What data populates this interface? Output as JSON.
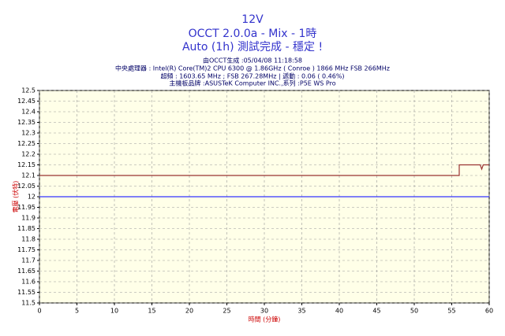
{
  "chart_data": {
    "type": "line",
    "title": "12V",
    "subtitle": "OCCT 2.0.0a - Mix - 1時",
    "status": "Auto (1h) 測試完成 - 穩定 !",
    "info": [
      "由OCCT生成 :05/04/08 11:18:58",
      "中央處理器 : Intel(R) Core(TM)2 CPU 6300 @ 1.86GHz ( Conroe ) 1866 MHz FSB 266MHz",
      "超頻 : 1603.65 MHz ; FSB 267.28MHz | 遞動 : 0.06 ( 0.46%)",
      "主機板品牌 :ASUSTeK Computer INC.,系列 :P5E WS Pro"
    ],
    "x_label": "時間 (分鐘)",
    "y_label": "電壓 (伏特)",
    "xlim": [
      0,
      60
    ],
    "xticks": [
      0,
      5,
      10,
      15,
      20,
      25,
      30,
      35,
      40,
      45,
      50,
      55,
      60
    ],
    "ylim": [
      11.5,
      12.5
    ],
    "yticks": [
      11.5,
      11.55,
      11.6,
      11.65,
      11.7,
      11.75,
      11.8,
      11.85,
      11.9,
      11.95,
      12,
      12.05,
      12.1,
      12.15,
      12.2,
      12.25,
      12.3,
      12.35,
      12.4,
      12.45,
      12.5
    ],
    "grid": true,
    "series": [
      {
        "color": "#3333ff",
        "x": [
          0,
          60
        ],
        "values": [
          12,
          12
        ]
      },
      {
        "color": "#993333",
        "x": [
          0,
          56,
          56,
          58.8,
          59,
          59.2,
          60
        ],
        "values": [
          12.1,
          12.1,
          12.15,
          12.15,
          12.13,
          12.15,
          12.15
        ]
      }
    ]
  }
}
